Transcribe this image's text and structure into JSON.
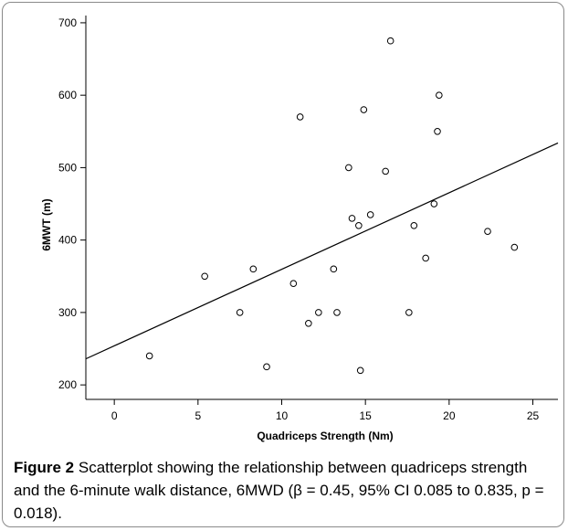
{
  "caption": {
    "label": "Figure 2",
    "text": "Scatterplot showing the relationship between quadriceps strength and the 6-minute walk distance, 6MWD (β = 0.45, 95% CI 0.085 to 0.835, p = 0.018)."
  },
  "chart_data": {
    "type": "scatter",
    "title": "",
    "xlabel": "Quadriceps Strength (Nm)",
    "ylabel": "6MWT (m)",
    "xlim": [
      -1.7,
      26.5
    ],
    "ylim": [
      180,
      710
    ],
    "xticks": [
      0,
      5,
      10,
      15,
      20,
      25
    ],
    "yticks": [
      200,
      300,
      400,
      500,
      600,
      700
    ],
    "grid": false,
    "legend": "none",
    "marker_color": "#000000",
    "line_color": "#000000",
    "points": [
      {
        "x": 2.1,
        "y": 240
      },
      {
        "x": 5.4,
        "y": 350
      },
      {
        "x": 7.5,
        "y": 300
      },
      {
        "x": 8.3,
        "y": 360
      },
      {
        "x": 9.1,
        "y": 225
      },
      {
        "x": 10.7,
        "y": 340
      },
      {
        "x": 11.1,
        "y": 570
      },
      {
        "x": 11.6,
        "y": 285
      },
      {
        "x": 12.2,
        "y": 300
      },
      {
        "x": 13.1,
        "y": 360
      },
      {
        "x": 13.3,
        "y": 300
      },
      {
        "x": 14.0,
        "y": 500
      },
      {
        "x": 14.2,
        "y": 430
      },
      {
        "x": 14.6,
        "y": 420
      },
      {
        "x": 14.7,
        "y": 220
      },
      {
        "x": 14.9,
        "y": 580
      },
      {
        "x": 15.3,
        "y": 435
      },
      {
        "x": 16.2,
        "y": 495
      },
      {
        "x": 16.5,
        "y": 675
      },
      {
        "x": 17.6,
        "y": 300
      },
      {
        "x": 17.9,
        "y": 420
      },
      {
        "x": 18.6,
        "y": 375
      },
      {
        "x": 19.1,
        "y": 450
      },
      {
        "x": 19.3,
        "y": 550
      },
      {
        "x": 19.4,
        "y": 600
      },
      {
        "x": 22.3,
        "y": 412
      },
      {
        "x": 23.9,
        "y": 390
      }
    ],
    "fit_line": {
      "x": [
        -1.7,
        26.5
      ],
      "y": [
        236,
        534
      ]
    }
  }
}
